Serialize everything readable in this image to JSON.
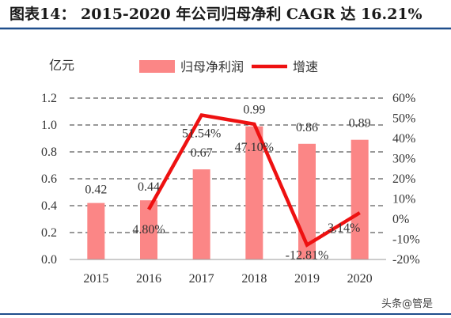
{
  "title": "图表14： 2015-2020 年公司归母净利 CAGR 达 16.21%",
  "watermark": "头条@管是",
  "colors": {
    "bar": "#fb8686",
    "line": "#ee1111",
    "title_rule": "#1f4e8c",
    "grid": "#333333"
  },
  "chart_data": {
    "type": "bar",
    "categories": [
      "2015",
      "2016",
      "2017",
      "2018",
      "2019",
      "2020"
    ],
    "ylabel": "亿元",
    "ylim": [
      0,
      1.2
    ],
    "yticks": [
      "0.0",
      "0.2",
      "0.4",
      "0.6",
      "0.8",
      "1.0",
      "1.2"
    ],
    "y2lim": [
      -20,
      60
    ],
    "y2ticks": [
      "-20%",
      "-10%",
      "0%",
      "10%",
      "20%",
      "30%",
      "40%",
      "50%",
      "60%"
    ],
    "grid": true,
    "legend_position": "top",
    "series": [
      {
        "name": "归母净利润",
        "type": "bar",
        "axis": "left",
        "values": [
          0.42,
          0.44,
          0.67,
          0.99,
          0.86,
          0.89
        ],
        "labels": [
          "0.42",
          "0.44",
          "0.67",
          "0.99",
          "0.86",
          "0.89"
        ]
      },
      {
        "name": "增速",
        "type": "line",
        "axis": "right",
        "values": [
          null,
          4.8,
          51.54,
          47.1,
          -12.81,
          3.14
        ],
        "labels": [
          "",
          "4.80%",
          "51.54%",
          "47.10%",
          "-12.81%",
          "3.14%"
        ]
      }
    ]
  }
}
